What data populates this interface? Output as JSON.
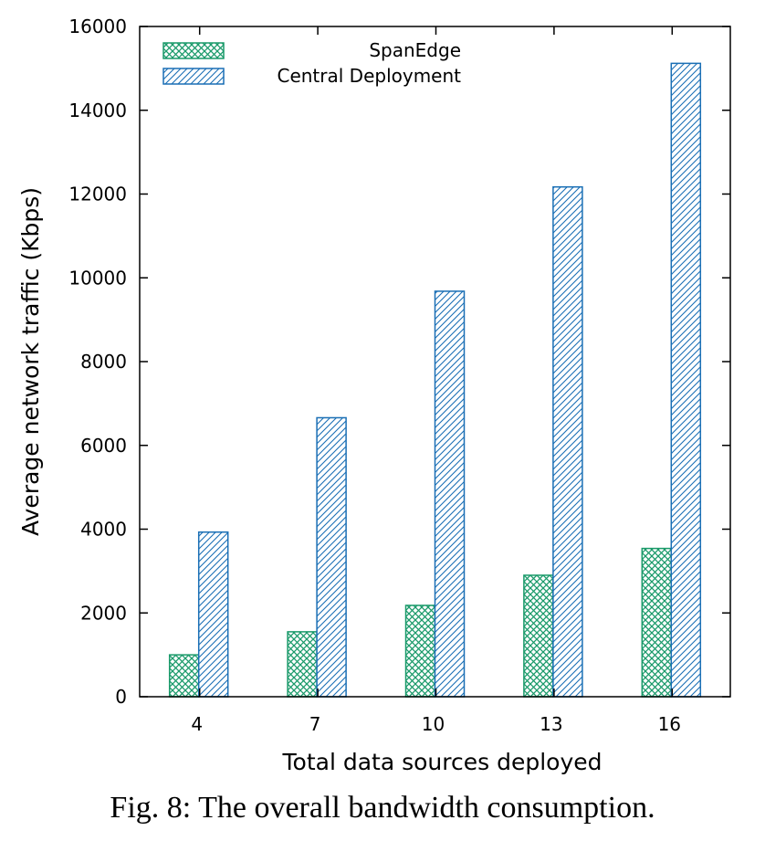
{
  "caption": "Fig. 8: The overall bandwidth consumption.",
  "colors": {
    "spanedge": "#1a9a6a",
    "central": "#1a6fb5"
  },
  "chart_data": {
    "type": "bar",
    "xlabel": "Total data sources deployed",
    "ylabel": "Average network traffic (Kbps)",
    "ylim": [
      0,
      16000
    ],
    "yticks": [
      0,
      2000,
      4000,
      6000,
      8000,
      10000,
      12000,
      14000,
      16000
    ],
    "categories": [
      "4",
      "7",
      "10",
      "13",
      "16"
    ],
    "legend_position": "top-left",
    "grid": false,
    "series": [
      {
        "name": "SpanEdge",
        "values": [
          1000,
          1550,
          2180,
          2900,
          3540
        ],
        "pattern": "crosshatch"
      },
      {
        "name": "Central Deployment",
        "values": [
          3930,
          6660,
          9680,
          12170,
          15120
        ],
        "pattern": "diagonal"
      }
    ]
  }
}
